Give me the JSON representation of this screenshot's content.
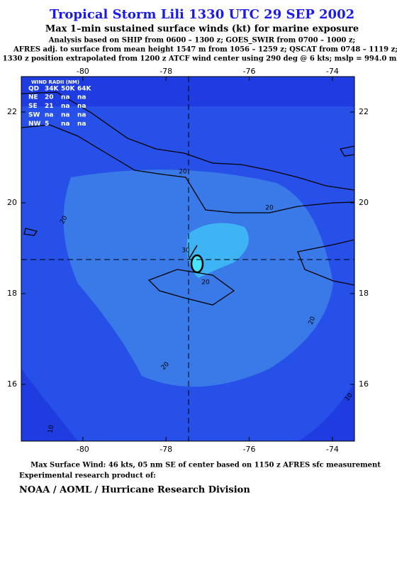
{
  "header": {
    "title": "Tropical Storm Lili 1330 UTC 29 SEP 2002",
    "subtitle": "Max 1–min sustained surface winds (kt) for marine exposure",
    "notes": [
      "Analysis based on  SHIP from 0600 – 1300 z;  GOES_SWIR from 0700 – 1000 z;",
      "AFRES adj. to surface from mean height 1547 m from 1056 – 1259 z;  QSCAT from 0748 – 1119 z;",
      "1330 z position extrapolated from 1200 z ATCF wind center using 290 deg @ 6 kts; mslp = 994.0 mb"
    ]
  },
  "map": {
    "xlim": [
      -81.48,
      -73.47
    ],
    "ylim": [
      14.75,
      22.78
    ],
    "xticks": [
      -80,
      -78,
      -76,
      -74
    ],
    "yticks": [
      22,
      20,
      18,
      16
    ],
    "wind_radii": {
      "title": "WIND RADII (NM)",
      "columns": [
        "QD",
        "34K",
        "50K",
        "64K"
      ],
      "rows": [
        [
          "NE",
          20,
          "na",
          "na"
        ],
        [
          "SE",
          21,
          "na",
          "na"
        ],
        [
          "SW",
          "na",
          "na",
          "na"
        ],
        [
          "NW",
          5,
          "na",
          "na"
        ]
      ]
    },
    "contour_labels": [
      20,
      20,
      20,
      30,
      20,
      20,
      20,
      10,
      10
    ]
  },
  "footer": {
    "max_wind": "Max Surface Wind: 46 kts, 05 nm SE of center based on 1150 z AFRES sfc measurement",
    "credit_intro": "Experimental research product of:",
    "credit": "NOAA / AOML / Hurricane Research Division"
  }
}
